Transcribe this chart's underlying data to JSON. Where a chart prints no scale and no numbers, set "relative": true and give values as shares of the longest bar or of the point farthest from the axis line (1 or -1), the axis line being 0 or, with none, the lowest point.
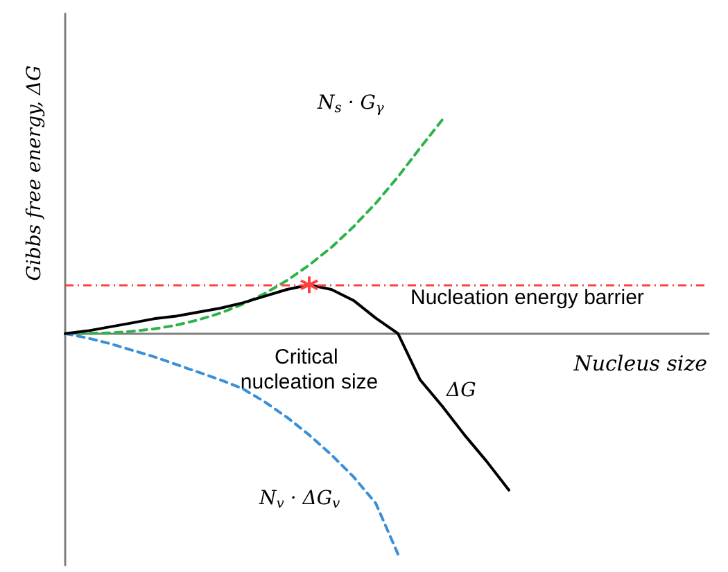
{
  "chart_data": {
    "type": "line",
    "relative": true,
    "ylabel": "Gibbs free energy, ΔG",
    "xlabel": "Nucleus size",
    "categories": [
      null,
      null,
      null,
      null,
      null,
      null,
      null,
      null,
      null,
      null,
      null,
      null,
      null,
      null,
      null,
      null,
      null,
      null,
      null,
      null,
      null,
      null,
      null,
      null,
      null,
      null,
      null,
      null,
      null,
      null
    ],
    "series": [
      {
        "name": "N$_{s}$ · G$_{γ}$",
        "color": "#2db34a",
        "line_style": "dashed",
        "values": [
          0,
          0.001,
          0.003,
          0.01,
          0.021,
          0.038,
          0.062,
          0.093,
          0.133,
          0.182,
          0.241,
          0.311,
          0.391,
          0.485,
          0.591,
          0.711,
          0.842,
          0.97,
          null,
          null,
          null,
          null,
          null,
          null,
          null,
          null,
          null,
          null,
          null,
          null
        ]
      },
      {
        "name": "N$_{v}$ · ΔG$_{v}$",
        "color": "#3a8fd6",
        "line_style": "dashed",
        "values": [
          0,
          -0.02,
          -0.045,
          -0.075,
          -0.105,
          -0.14,
          -0.175,
          -0.21,
          -0.25,
          -0.31,
          -0.38,
          -0.46,
          -0.55,
          -0.65,
          -0.77,
          -1,
          null,
          null,
          null,
          null,
          null,
          null,
          null,
          null,
          null,
          null,
          null,
          null,
          null,
          null
        ]
      },
      {
        "name": "ΔG",
        "color": "#000000",
        "line_style": "solid",
        "values": [
          0,
          0.012,
          0.03,
          0.048,
          0.067,
          0.079,
          0.097,
          0.115,
          0.139,
          0.17,
          0.2,
          0.221,
          0.2,
          0.15,
          0.07,
          0,
          -0.21,
          -0.33,
          -0.46,
          -0.58,
          -0.71,
          null,
          null,
          null,
          null,
          null,
          null,
          null,
          null,
          null
        ]
      }
    ],
    "ref_lines": [
      {
        "axis": "y",
        "value": 0.221,
        "color": "#ff4040",
        "line_style": "dashed"
      }
    ],
    "annotations": [
      "Critical nucleation size",
      "Nucleation energy barrier"
    ]
  }
}
